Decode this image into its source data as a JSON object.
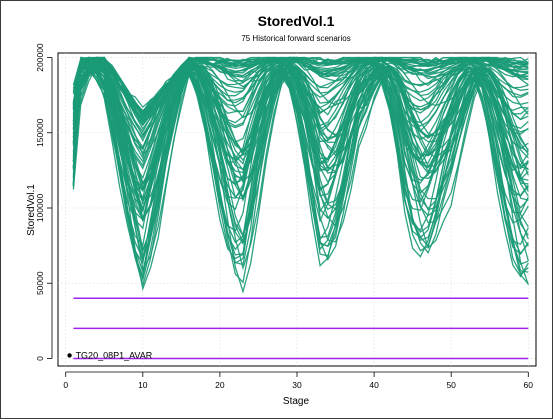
{
  "chart_data": {
    "type": "line",
    "title": "StoredVol.1",
    "subtitle": "75 Historical forward scenarios",
    "xlabel": "Stage",
    "ylabel": "StoredVol.1",
    "xlim": [
      -1,
      61
    ],
    "ylim": [
      -5000,
      203000
    ],
    "x_ticks": [
      0,
      10,
      20,
      30,
      40,
      50,
      60
    ],
    "y_ticks": [
      0,
      50000,
      100000,
      150000,
      200000
    ],
    "grid": true,
    "scenario_count": 75,
    "scenario_color": "#1a9a76",
    "reference_lines": [
      {
        "y": 40000,
        "x": [
          1,
          60
        ],
        "color": "#a020f0"
      },
      {
        "y": 20000,
        "x": [
          1,
          60
        ],
        "color": "#a020f0"
      },
      {
        "y": 0,
        "x": [
          1,
          60
        ],
        "color": "#a020f0"
      }
    ],
    "annotation": {
      "text": "TG20_08P1_AVAR",
      "x": 0.5,
      "y": 2000
    },
    "envelope": {
      "x": [
        1,
        5,
        10,
        16,
        23,
        28,
        33,
        38,
        44,
        49,
        55,
        60
      ],
      "upper": [
        200000,
        200000,
        165000,
        200000,
        200000,
        200000,
        200000,
        200000,
        200000,
        200000,
        200000,
        200000
      ],
      "lower": [
        108000,
        125000,
        40000,
        110000,
        40000,
        95000,
        42000,
        110000,
        38000,
        80000,
        40000,
        42000
      ]
    }
  }
}
